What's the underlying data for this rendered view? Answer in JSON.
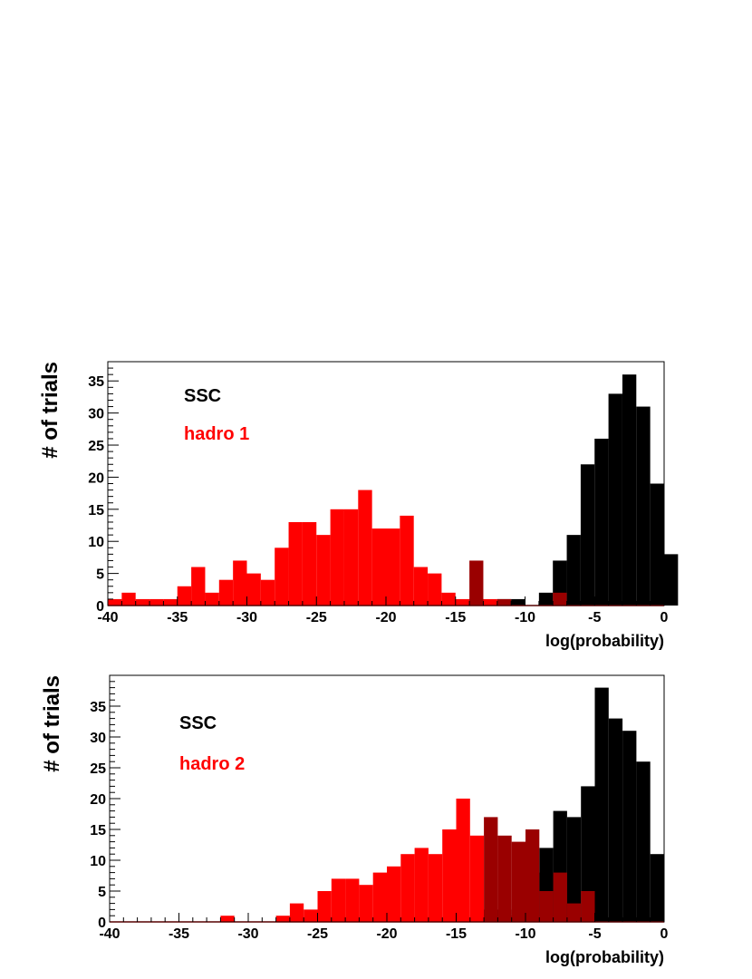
{
  "colors": {
    "ssc": "#000000",
    "hadro": "#ff0000",
    "overlap": "#9a0000",
    "frame": "#000000"
  },
  "chart_data": [
    {
      "type": "bar",
      "xlabel": "log(probability)",
      "ylabel": "# of trials",
      "xlim": [
        -40,
        0
      ],
      "ylim": [
        0,
        38
      ],
      "x_ticks": [
        "-40",
        "-35",
        "-30",
        "-25",
        "-20",
        "-15",
        "-10",
        "-5",
        "0"
      ],
      "y_ticks": [
        "0",
        "5",
        "10",
        "15",
        "20",
        "25",
        "30",
        "35"
      ],
      "bin_width": 1,
      "legend": {
        "ssc": "SSC",
        "hadro": "hadro 1"
      },
      "series": [
        {
          "key": "ssc",
          "color": "#000000",
          "bins_start": -15,
          "values": [
            0,
            1,
            0,
            1,
            1,
            0,
            2,
            7,
            11,
            22,
            26,
            33,
            36,
            31,
            19,
            8
          ]
        },
        {
          "key": "hadro",
          "color": "#ff0000",
          "bins_start": -40,
          "values": [
            1,
            2,
            1,
            1,
            1,
            3,
            6,
            2,
            4,
            7,
            5,
            4,
            9,
            13,
            13,
            11,
            15,
            15,
            18,
            12,
            12,
            14,
            6,
            5,
            2,
            1,
            7,
            1,
            1,
            0,
            0,
            0,
            2,
            0
          ]
        }
      ]
    },
    {
      "type": "bar",
      "xlabel": "log(probability)",
      "ylabel": "# of trials",
      "xlim": [
        -40,
        0
      ],
      "ylim": [
        0,
        40
      ],
      "x_ticks": [
        "-40",
        "-35",
        "-30",
        "-25",
        "-20",
        "-15",
        "-10",
        "-5",
        "0"
      ],
      "y_ticks": [
        "0",
        "5",
        "10",
        "15",
        "20",
        "25",
        "30",
        "35"
      ],
      "bin_width": 1,
      "legend": {
        "ssc": "SSC",
        "hadro": "hadro 2"
      },
      "series": [
        {
          "key": "ssc",
          "color": "#000000",
          "bins_start": -13,
          "values": [
            2,
            2,
            1,
            8,
            12,
            18,
            17,
            22,
            38,
            33,
            31,
            26,
            11
          ]
        },
        {
          "key": "hadro",
          "color": "#ff0000",
          "bins_start": -40,
          "values": [
            0,
            0,
            0,
            0,
            0,
            0,
            0,
            0,
            1,
            0,
            0,
            0,
            1,
            3,
            2,
            5,
            7,
            7,
            6,
            8,
            9,
            11,
            12,
            11,
            15,
            20,
            14,
            17,
            14,
            13,
            15,
            5,
            8,
            3,
            5,
            0
          ]
        }
      ]
    }
  ]
}
